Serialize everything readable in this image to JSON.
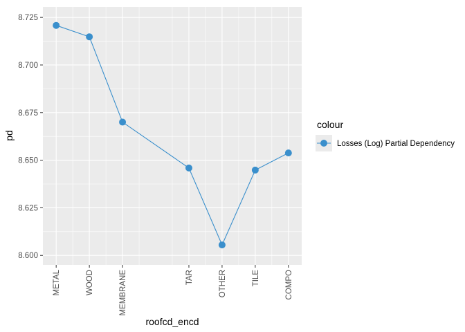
{
  "chart_data": {
    "type": "line",
    "categories": [
      "METAL",
      "WOOD",
      "MEMBRANE",
      "TAR",
      "OTHER",
      "TILE",
      "COMPO"
    ],
    "x": [
      1,
      2,
      3,
      5,
      6,
      7,
      8
    ],
    "series": [
      {
        "name": "Losses (Log) Partial Dependency",
        "values": [
          8.7208,
          8.7148,
          8.67,
          8.6459,
          8.6055,
          8.6448,
          8.6538
        ],
        "color": "#3a8fcc"
      }
    ],
    "title": "",
    "xlabel": "roofcd_encd",
    "ylabel": "pd",
    "ylim": [
      8.6,
      8.725
    ],
    "yticks": [
      "8.600",
      "8.625",
      "8.650",
      "8.675",
      "8.700",
      "8.725"
    ],
    "grid": true,
    "legend": {
      "title": "colour",
      "position": "right"
    }
  }
}
